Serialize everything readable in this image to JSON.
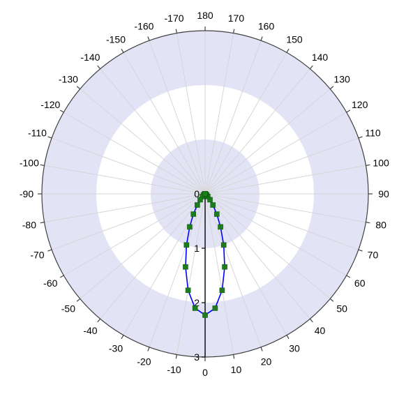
{
  "chart_data": {
    "type": "polar-line",
    "title": "",
    "angle_axis": {
      "zero_at": "bottom",
      "direction": "counterclockwise-positive-toward-right",
      "tick_step_deg": 10,
      "tick_labels": [
        "0",
        "10",
        "20",
        "30",
        "40",
        "50",
        "60",
        "70",
        "80",
        "90",
        "100",
        "110",
        "120",
        "130",
        "140",
        "150",
        "160",
        "170",
        "180",
        "-170",
        "-160",
        "-150",
        "-140",
        "-130",
        "-120",
        "-110",
        "-100",
        "-90",
        "-80",
        "-70",
        "-60",
        "-50",
        "-40",
        "-30",
        "-20",
        "-10"
      ]
    },
    "radial_axis": {
      "range": [
        0,
        3
      ],
      "tick_values": [
        0,
        1,
        2,
        3
      ],
      "tick_labels": [
        "0",
        "1",
        "2",
        "3"
      ],
      "label_side": "bottom-vertical"
    },
    "bands": [
      {
        "from": 0,
        "to": 1,
        "color": "#E3E3F6"
      },
      {
        "from": 1,
        "to": 2,
        "color": "#FFFFFF"
      },
      {
        "from": 2,
        "to": 3,
        "color": "#E3E3F6"
      }
    ],
    "grid": true,
    "series": [
      {
        "color_line": "#0000FF",
        "color_marker": "#1E7B1E",
        "marker": "square",
        "points": [
          {
            "angle": -90,
            "r": 0.0
          },
          {
            "angle": -85,
            "r": 0.0
          },
          {
            "angle": -80,
            "r": 0.0
          },
          {
            "angle": -75,
            "r": 0.0
          },
          {
            "angle": -70,
            "r": 0.0
          },
          {
            "angle": -65,
            "r": 0.0
          },
          {
            "angle": -60,
            "r": 0.01
          },
          {
            "angle": -55,
            "r": 0.02
          },
          {
            "angle": -50,
            "r": 0.04
          },
          {
            "angle": -45,
            "r": 0.07
          },
          {
            "angle": -40,
            "r": 0.14
          },
          {
            "angle": -35,
            "r": 0.25
          },
          {
            "angle": -30,
            "r": 0.43
          },
          {
            "angle": -25,
            "r": 0.67
          },
          {
            "angle": -20,
            "r": 1.0
          },
          {
            "angle": -15,
            "r": 1.39
          },
          {
            "angle": -10,
            "r": 1.8
          },
          {
            "angle": -5,
            "r": 2.11
          },
          {
            "angle": 0,
            "r": 2.23
          },
          {
            "angle": 5,
            "r": 2.11
          },
          {
            "angle": 10,
            "r": 1.8
          },
          {
            "angle": 15,
            "r": 1.39
          },
          {
            "angle": 20,
            "r": 1.0
          },
          {
            "angle": 25,
            "r": 0.67
          },
          {
            "angle": 30,
            "r": 0.43
          },
          {
            "angle": 35,
            "r": 0.25
          },
          {
            "angle": 40,
            "r": 0.14
          },
          {
            "angle": 45,
            "r": 0.07
          },
          {
            "angle": 50,
            "r": 0.04
          },
          {
            "angle": 55,
            "r": 0.02
          },
          {
            "angle": 60,
            "r": 0.01
          },
          {
            "angle": 65,
            "r": 0.0
          },
          {
            "angle": 70,
            "r": 0.0
          },
          {
            "angle": 75,
            "r": 0.0
          },
          {
            "angle": 80,
            "r": 0.0
          },
          {
            "angle": 85,
            "r": 0.0
          },
          {
            "angle": 90,
            "r": 0.0
          }
        ]
      }
    ]
  }
}
